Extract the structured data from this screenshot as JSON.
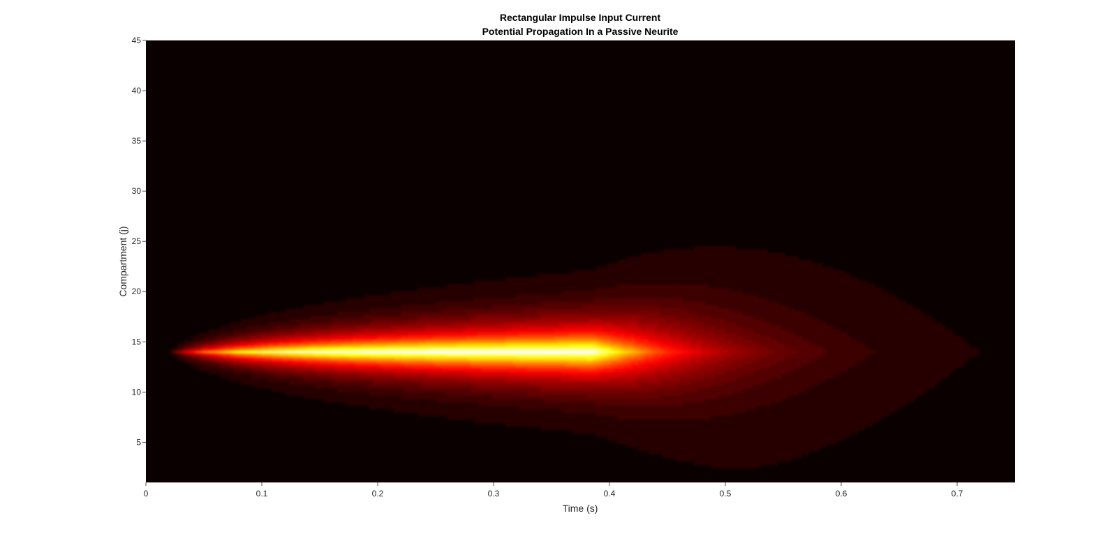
{
  "chart_data": {
    "type": "heatmap",
    "title": "Rectangular Impulse Input Current",
    "subtitle": "Potential Propagation In a Passive Neurite",
    "xlabel": "Time (s)",
    "ylabel": "Compartment (j)",
    "xlim": [
      0,
      0.75
    ],
    "ylim": [
      1,
      45
    ],
    "x_ticks": [
      0,
      0.1,
      0.2,
      0.3,
      0.4,
      0.5,
      0.6,
      0.7
    ],
    "x_tick_labels": [
      "0",
      "0.1",
      "0.2",
      "0.3",
      "0.4",
      "0.5",
      "0.6",
      "0.7"
    ],
    "y_ticks": [
      5,
      10,
      15,
      20,
      25,
      30,
      35,
      40,
      45
    ],
    "y_tick_labels": [
      "5",
      "10",
      "15",
      "20",
      "25",
      "30",
      "35",
      "40",
      "45"
    ],
    "colormap": "hot",
    "grid": false,
    "stimulus": {
      "compartment": 14,
      "onset_time": 0.02,
      "offset_time": 0.385
    }
  }
}
